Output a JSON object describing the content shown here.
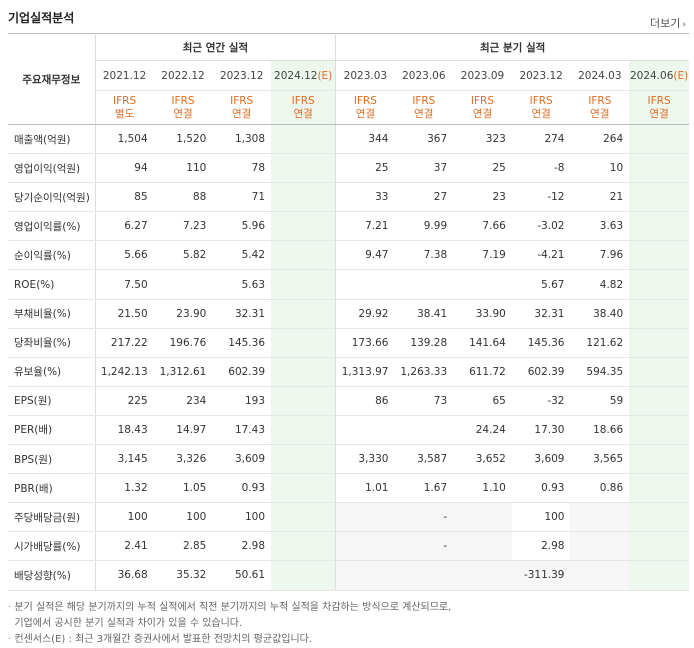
{
  "title": "기업실적분석",
  "more_label": "더보기",
  "headers": {
    "label_head": "주요재무정보",
    "annual_group": "최근 연간 실적",
    "quarter_group": "최근 분기 실적",
    "annual_periods": [
      "2021.12",
      "2022.12",
      "2023.12",
      "2024.12(E)"
    ],
    "quarter_periods": [
      "2023.03",
      "2023.06",
      "2023.09",
      "2023.12",
      "2024.03",
      "2024.06(E)"
    ],
    "annual_types": [
      [
        "IFRS",
        "별도"
      ],
      [
        "IFRS",
        "연결"
      ],
      [
        "IFRS",
        "연결"
      ],
      [
        "IFRS",
        "연결"
      ]
    ],
    "quarter_types": [
      [
        "IFRS",
        "연결"
      ],
      [
        "IFRS",
        "연결"
      ],
      [
        "IFRS",
        "연결"
      ],
      [
        "IFRS",
        "연결"
      ],
      [
        "IFRS",
        "연결"
      ],
      [
        "IFRS",
        "연결"
      ]
    ]
  },
  "rows": [
    {
      "label": "매출액(억원)",
      "values": [
        "1,504",
        "1,520",
        "1,308",
        "",
        "344",
        "367",
        "323",
        "274",
        "264",
        ""
      ]
    },
    {
      "label": "영업이익(억원)",
      "values": [
        "94",
        "110",
        "78",
        "",
        "25",
        "37",
        "25",
        "-8",
        "10",
        ""
      ]
    },
    {
      "label": "당기순이익(억원)",
      "values": [
        "85",
        "88",
        "71",
        "",
        "33",
        "27",
        "23",
        "-12",
        "21",
        ""
      ]
    },
    {
      "label": "영업이익률(%)",
      "values": [
        "6.27",
        "7.23",
        "5.96",
        "",
        "7.21",
        "9.99",
        "7.66",
        "-3.02",
        "3.63",
        ""
      ]
    },
    {
      "label": "순이익률(%)",
      "values": [
        "5.66",
        "5.82",
        "5.42",
        "",
        "9.47",
        "7.38",
        "7.19",
        "-4.21",
        "7.96",
        ""
      ]
    },
    {
      "label": "ROE(%)",
      "values": [
        "7.50",
        "",
        "5.63",
        "",
        "",
        "",
        "",
        "5.67",
        "4.82",
        ""
      ]
    },
    {
      "label": "부채비율(%)",
      "values": [
        "21.50",
        "23.90",
        "32.31",
        "",
        "29.92",
        "38.41",
        "33.90",
        "32.31",
        "38.40",
        ""
      ]
    },
    {
      "label": "당좌비율(%)",
      "values": [
        "217.22",
        "196.76",
        "145.36",
        "",
        "173.66",
        "139.28",
        "141.64",
        "145.36",
        "121.62",
        ""
      ]
    },
    {
      "label": "유보율(%)",
      "values": [
        "1,242.13",
        "1,312.61",
        "602.39",
        "",
        "1,313.97",
        "1,263.33",
        "611.72",
        "602.39",
        "594.35",
        ""
      ]
    },
    {
      "label": "EPS(원)",
      "values": [
        "225",
        "234",
        "193",
        "",
        "86",
        "73",
        "65",
        "-32",
        "59",
        ""
      ]
    },
    {
      "label": "PER(배)",
      "values": [
        "18.43",
        "14.97",
        "17.43",
        "",
        "",
        "",
        "24.24",
        "17.30",
        "18.66",
        ""
      ]
    },
    {
      "label": "BPS(원)",
      "values": [
        "3,145",
        "3,326",
        "3,609",
        "",
        "3,330",
        "3,587",
        "3,652",
        "3,609",
        "3,565",
        ""
      ]
    },
    {
      "label": "PBR(배)",
      "values": [
        "1.32",
        "1.05",
        "0.93",
        "",
        "1.01",
        "1.67",
        "1.10",
        "0.93",
        "0.86",
        ""
      ]
    },
    {
      "label": "주당배당금(원)",
      "values": [
        "100",
        "100",
        "100",
        "",
        "",
        "-",
        "",
        "100",
        "",
        ""
      ]
    },
    {
      "label": "시가배당률(%)",
      "values": [
        "2.41",
        "2.85",
        "2.98",
        "",
        "",
        "-",
        "",
        "2.98",
        "",
        ""
      ]
    },
    {
      "label": "배당성향(%)",
      "values": [
        "36.68",
        "35.32",
        "50.61",
        "",
        "",
        "",
        "",
        "-311.39",
        "",
        ""
      ]
    }
  ],
  "notes": [
    "분기 실적은 해당 분기까지의 누적 실적에서 직전 분기까지의 누적 실적을 차감하는 방식으로 계산되므로,",
    "기업에서 공시한 분기 실적과 차이가 있을 수 있습니다.",
    "컨센서스(E) : 최근 3개월간 증권사에서 발표한 전망치의 평균값입니다."
  ],
  "colors": {
    "accent": "#e06c21",
    "negative": "#e3311c",
    "estimate_bg": "#edf7ee"
  }
}
